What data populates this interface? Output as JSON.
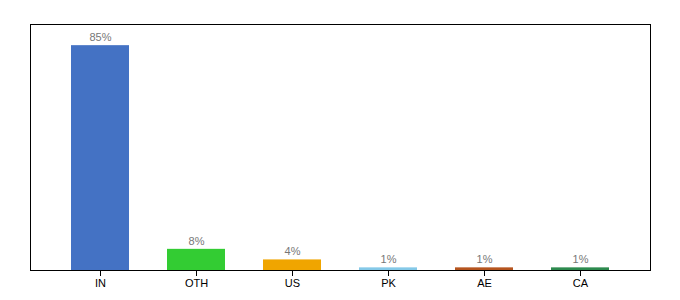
{
  "chart_data": {
    "type": "bar",
    "categories": [
      "IN",
      "OTH",
      "US",
      "PK",
      "AE",
      "CA"
    ],
    "values": [
      85,
      8,
      4,
      1,
      1,
      1
    ],
    "value_labels": [
      "85%",
      "8%",
      "4%",
      "1%",
      "1%",
      "1%"
    ],
    "colors": [
      "#4472c4",
      "#33cc33",
      "#f0a500",
      "#85c9e8",
      "#b5541e",
      "#2d8a4e"
    ],
    "ylim": [
      0,
      93
    ],
    "data_labels": true,
    "tick_labels": "x",
    "grid": false
  }
}
